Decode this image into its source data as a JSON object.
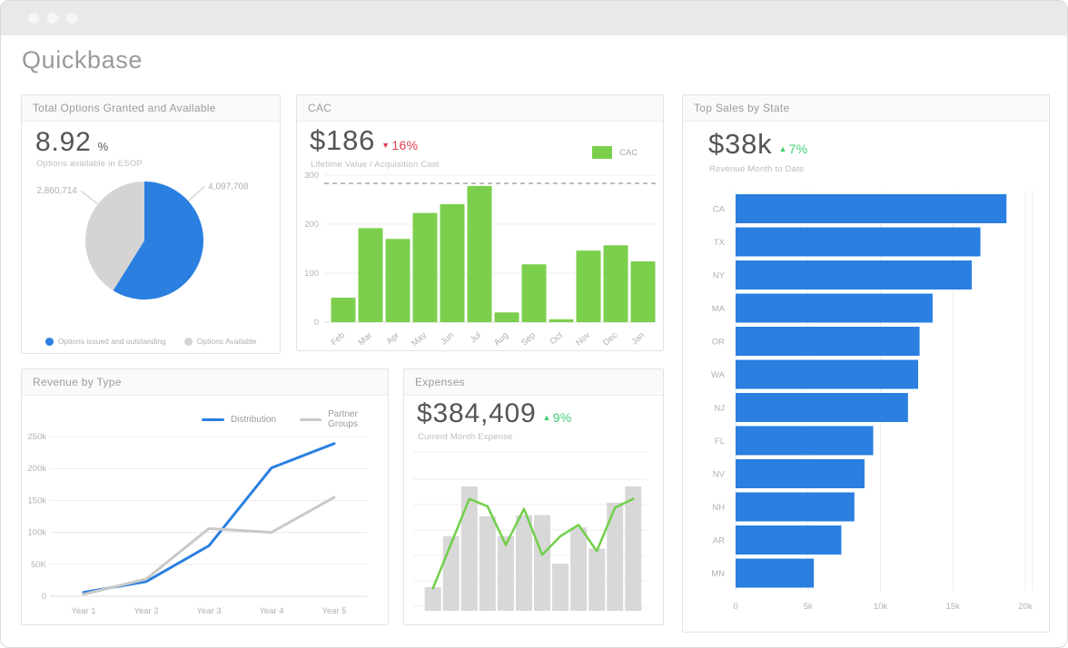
{
  "window": {
    "title": "Quickbase"
  },
  "colors": {
    "blue": "#2a7fe0",
    "green": "#7ccf4d",
    "line_green": "#72cf4a",
    "gray": "#d4d4d4",
    "delta_up": "#3ecf71",
    "delta_down": "#e23b4e"
  },
  "cards": {
    "esop": {
      "title": "Total Options Granted and Available",
      "stat": "8.92",
      "stat_unit": "%",
      "subtitle": "Options available in ESOP",
      "legend": [
        {
          "label": "Options issued and outstanding",
          "color": "#2a7fe0"
        },
        {
          "label": "Options Available",
          "color": "#d4d4d4"
        }
      ]
    },
    "cac": {
      "title": "CAC",
      "stat": "$186",
      "delta_arrow": "▼",
      "delta": "16%",
      "subtitle": "Lifetime Value / Acquisition Cost",
      "legend_label": "CAC"
    },
    "state": {
      "title": "Top Sales by State",
      "stat": "$38k",
      "delta_arrow": "▲",
      "delta": "7%",
      "subtitle": "Revenue Month to Date"
    },
    "revenue": {
      "title": "Revenue by Type",
      "legend": [
        {
          "label": "Distribution",
          "color": "#2a7fe0"
        },
        {
          "label": "Partner Groups",
          "color": "#c9c9c9"
        }
      ]
    },
    "expenses": {
      "title": "Expenses",
      "stat": "$384,409",
      "delta_arrow": "▲",
      "delta": "9%",
      "subtitle": "Current Month Expense"
    }
  },
  "chart_data": [
    {
      "id": "esop-pie",
      "type": "pie",
      "title": "Total Options Granted and Available",
      "slices": [
        {
          "label": "Options issued and outstanding",
          "value": 4097708,
          "display": "4,097,708",
          "color": "#2a7fe0"
        },
        {
          "label": "Options Available",
          "value": 2860714,
          "display": "2,860,714",
          "color": "#d4d4d4"
        }
      ]
    },
    {
      "id": "cac-chart",
      "type": "bar",
      "title": "CAC",
      "categories": [
        "Feb",
        "Mar",
        "Apr",
        "May",
        "Jun",
        "Jul",
        "Aug",
        "Sep",
        "Oct",
        "Nov",
        "Dec",
        "Jan"
      ],
      "values": [
        50,
        192,
        170,
        223,
        241,
        278,
        20,
        118,
        6,
        146,
        157,
        124
      ],
      "ylim": [
        0,
        300
      ],
      "yticks": [
        0,
        100,
        200,
        300
      ],
      "ytick_labels": [
        "0",
        "100",
        "200",
        "300"
      ],
      "target_line": 283,
      "bar_color": "#7ccf4d",
      "legend": [
        "CAC"
      ],
      "grid": true
    },
    {
      "id": "state-chart",
      "type": "bar",
      "orientation": "horizontal",
      "title": "Top Sales by State",
      "categories": [
        "CA",
        "TX",
        "NY",
        "MA",
        "OR",
        "WA",
        "NJ",
        "FL",
        "NV",
        "NH",
        "AR",
        "MN"
      ],
      "values": [
        18700,
        16900,
        16300,
        13600,
        12700,
        12600,
        11900,
        9500,
        8900,
        8200,
        7300,
        5400
      ],
      "xlim": [
        0,
        20000
      ],
      "xticks": [
        0,
        5000,
        10000,
        15000,
        20000
      ],
      "xtick_labels": [
        "0",
        "5k",
        "10k",
        "15k",
        "20k"
      ],
      "bar_color": "#2a7fe0",
      "grid": true
    },
    {
      "id": "revenue-chart",
      "type": "line",
      "title": "Revenue by Type",
      "categories": [
        "Year 1",
        "Year 2",
        "Year 3",
        "Year 4",
        "Year 5"
      ],
      "ylim": [
        0,
        250000
      ],
      "yticks": [
        0,
        50000,
        100000,
        150000,
        200000,
        250000
      ],
      "ytick_labels": [
        "0",
        "50K",
        "100k",
        "150k",
        "200k",
        "250k"
      ],
      "legend_position": "top-right",
      "grid": true,
      "series": [
        {
          "name": "Distribution",
          "color": "#2a7fe0",
          "values": [
            6000,
            23000,
            79000,
            201000,
            239000
          ]
        },
        {
          "name": "Partner Groups",
          "color": "#c9c9c9",
          "values": [
            3000,
            27000,
            106000,
            100000,
            155000
          ]
        }
      ]
    },
    {
      "id": "expenses-chart",
      "type": "bar-line",
      "title": "Expenses",
      "bar_values": [
        19,
        60,
        100,
        76,
        60,
        77,
        77,
        38,
        67,
        50,
        87,
        100
      ],
      "line_values": [
        18,
        54,
        90,
        84,
        53,
        82,
        45,
        60,
        69,
        48,
        83,
        90
      ],
      "ylim": [
        0,
        125
      ],
      "bar_color": "#d8d8d8",
      "line_color": "#72cf4a",
      "grid": true
    }
  ]
}
